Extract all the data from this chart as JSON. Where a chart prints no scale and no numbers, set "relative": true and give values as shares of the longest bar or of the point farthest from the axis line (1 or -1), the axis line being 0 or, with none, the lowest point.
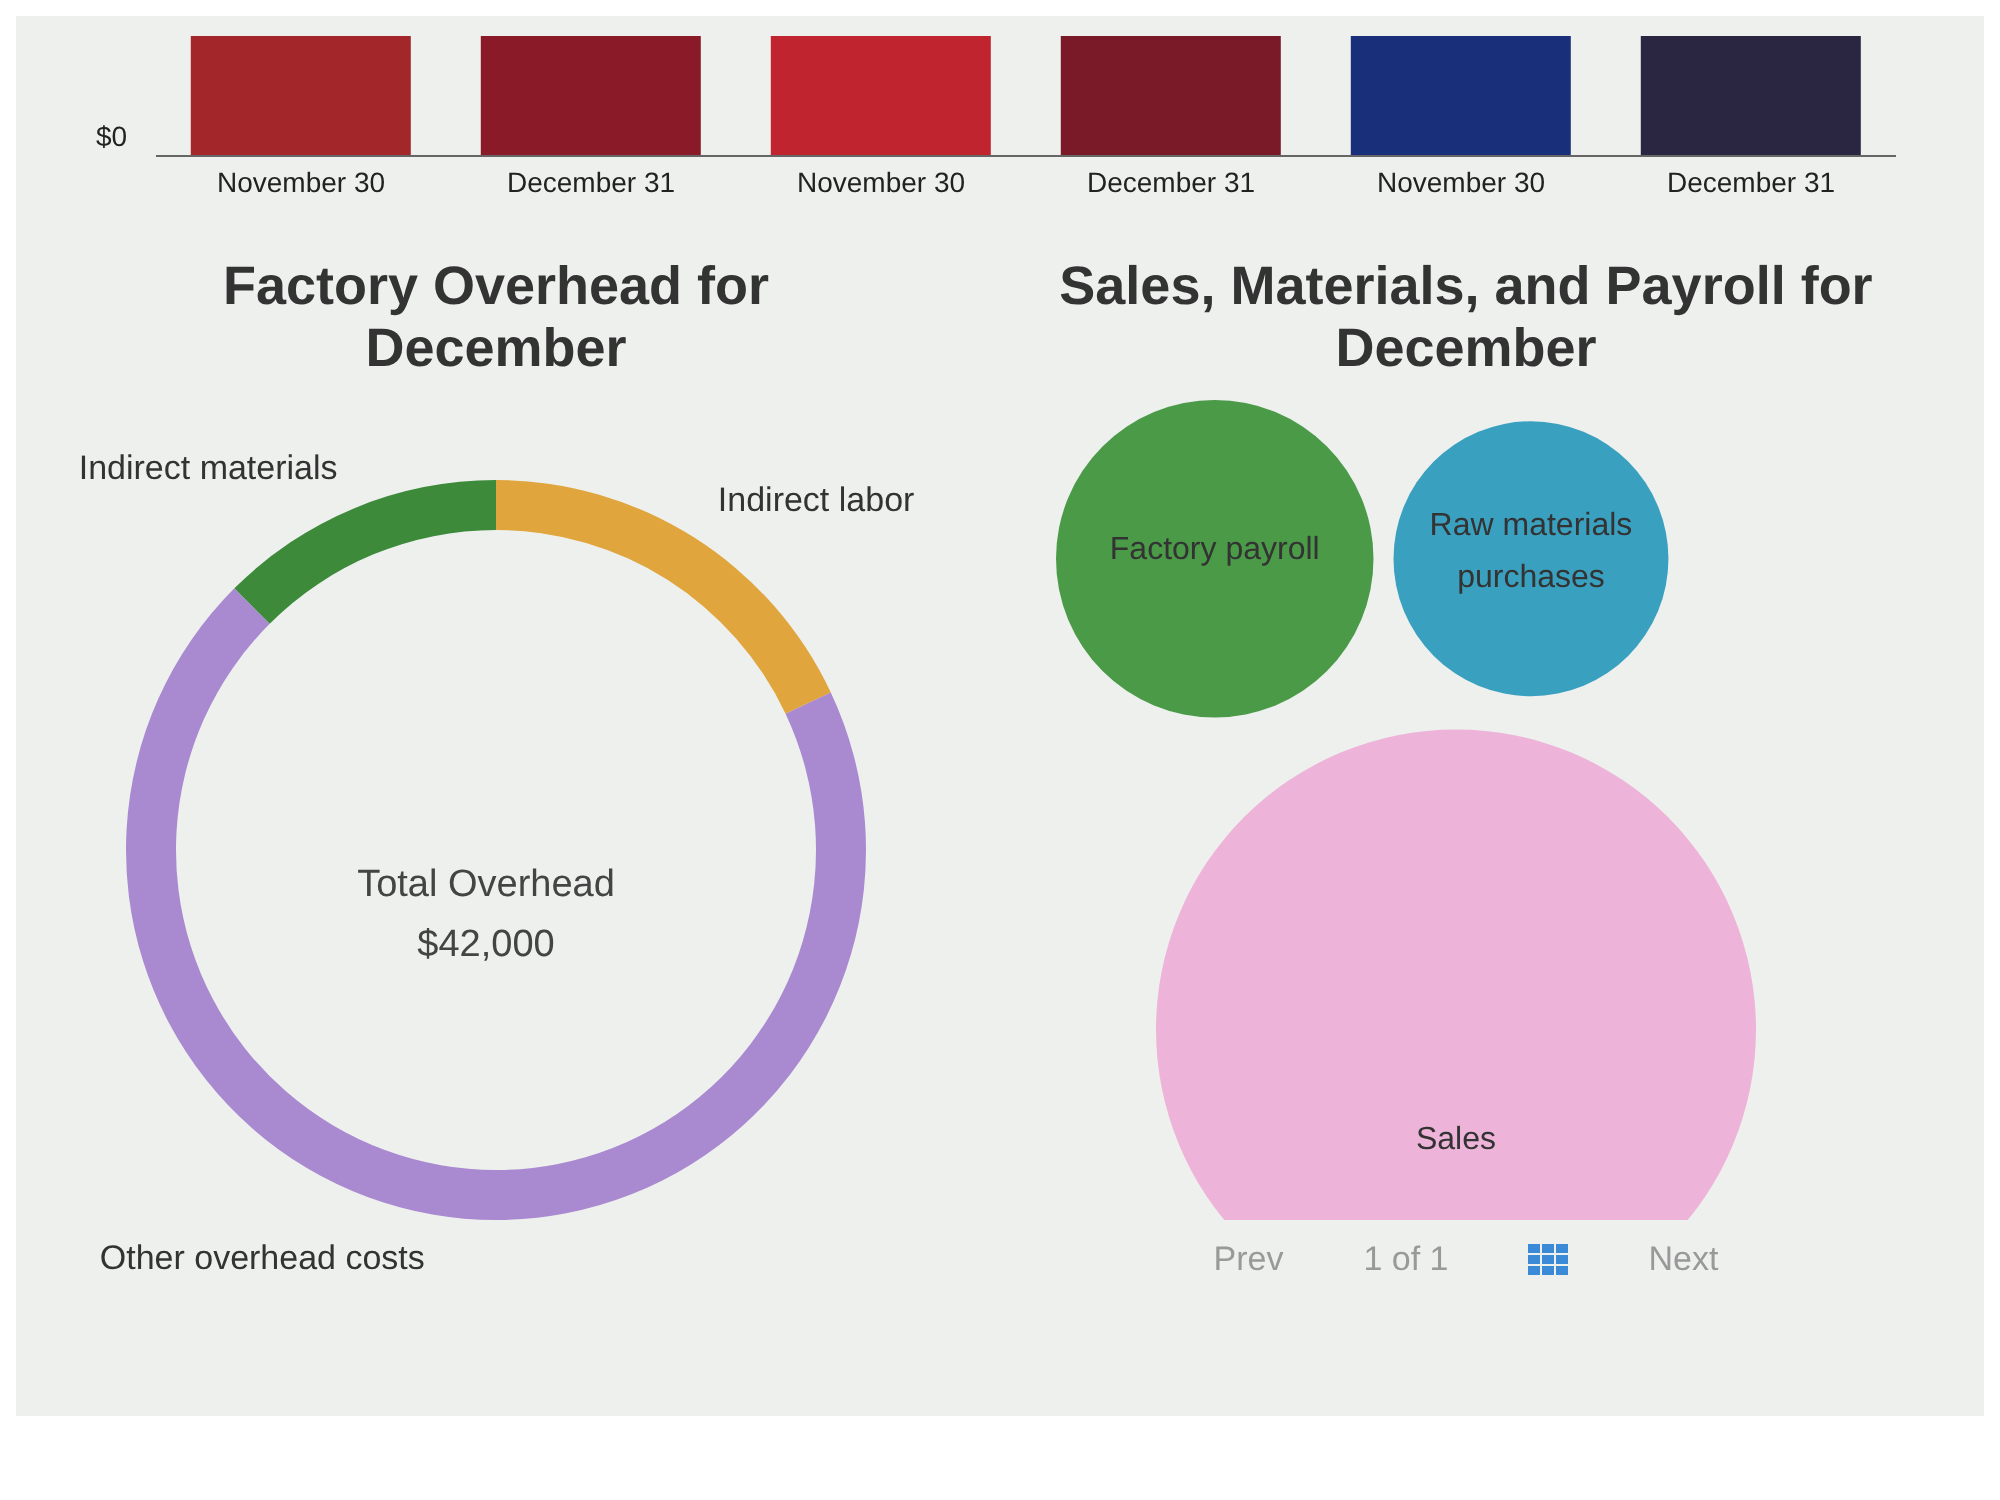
{
  "chart_data": [
    {
      "type": "bar",
      "relative": true,
      "categories": [
        "November 30",
        "December 31",
        "November 30",
        "December 31",
        "November 30",
        "December 31"
      ],
      "values": [
        1,
        1,
        1,
        1,
        1,
        1
      ],
      "colors": [
        "#a3262a",
        "#8a1a28",
        "#c0242e",
        "#7a1a28",
        "#1a2f7a",
        "#2a2540"
      ],
      "annotations": [
        "$0"
      ],
      "grid": false,
      "legend": false
    },
    {
      "type": "donut",
      "title": "Factory Overhead for December",
      "categories": [
        "Indirect labor",
        "Other overhead costs",
        "Indirect materials"
      ],
      "values": [
        18,
        69.5,
        12.5
      ],
      "colors": [
        "#e0a53c",
        "#a98ad0",
        "#3d8a3a"
      ],
      "annotations": [
        "Total Overhead",
        "$42,000"
      ],
      "legend": false
    },
    {
      "type": "other",
      "title": "Sales, Materials, and Payroll for December",
      "categories": [
        "Factory payroll",
        "Raw materials purchases",
        "Sales"
      ],
      "colors": [
        "#4a9a48",
        "#3aa0c0",
        "#eeb3d8"
      ],
      "annotations": [
        "Prev",
        "1 of 1",
        "Next"
      ],
      "legend": false
    }
  ]
}
